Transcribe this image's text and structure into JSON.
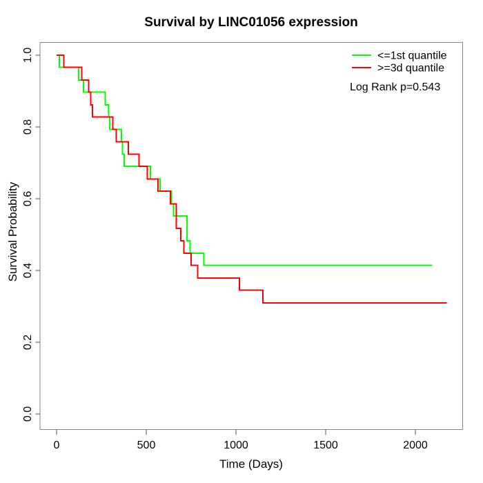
{
  "title": "Survival by LINC01056 expression",
  "legend": {
    "items": [
      {
        "label": "<=1st quantile",
        "color": "#00ff00"
      },
      {
        "label": ">=3d quantile",
        "color": "#ff0000"
      }
    ],
    "annotation": "Log Rank p=0.543"
  },
  "chart_data": {
    "type": "line",
    "subtype": "kaplan-meier-step",
    "title": "Survival by LINC01056 expression",
    "xlabel": "Time (Days)",
    "ylabel": "Survival Probability",
    "xlim": [
      0,
      2200
    ],
    "ylim": [
      0.0,
      1.0
    ],
    "grid": false,
    "legend_position": "top-right",
    "x_ticks": [
      0,
      500,
      1000,
      1500,
      2000
    ],
    "x_tick_labels": [
      "0",
      "500",
      "1000",
      "1500",
      "2000"
    ],
    "y_ticks": [
      0.0,
      0.2,
      0.4,
      0.6,
      0.8,
      1.0
    ],
    "y_tick_labels": [
      "0.0",
      "0.2",
      "0.4",
      "0.6",
      "0.8",
      "1.0"
    ],
    "annotation": "Log Rank p=0.543",
    "series": [
      {
        "name": "<=1st quantile",
        "color": "#00ff00",
        "end_time": 2095,
        "steps": [
          [
            0,
            1.0
          ],
          [
            15,
            0.966
          ],
          [
            124,
            0.931
          ],
          [
            150,
            0.897
          ],
          [
            272,
            0.862
          ],
          [
            291,
            0.828
          ],
          [
            296,
            0.793
          ],
          [
            362,
            0.759
          ],
          [
            367,
            0.724
          ],
          [
            376,
            0.69
          ],
          [
            524,
            0.655
          ],
          [
            576,
            0.621
          ],
          [
            641,
            0.586
          ],
          [
            652,
            0.552
          ],
          [
            727,
            0.483
          ],
          [
            744,
            0.448
          ],
          [
            822,
            0.414
          ]
        ]
      },
      {
        "name": ">=3d quantile",
        "color": "#ff0000",
        "end_time": 2175,
        "steps": [
          [
            0,
            1.0
          ],
          [
            40,
            0.966
          ],
          [
            140,
            0.931
          ],
          [
            178,
            0.897
          ],
          [
            191,
            0.862
          ],
          [
            200,
            0.828
          ],
          [
            313,
            0.793
          ],
          [
            332,
            0.759
          ],
          [
            400,
            0.724
          ],
          [
            460,
            0.69
          ],
          [
            505,
            0.655
          ],
          [
            565,
            0.621
          ],
          [
            635,
            0.586
          ],
          [
            667,
            0.517
          ],
          [
            692,
            0.483
          ],
          [
            710,
            0.448
          ],
          [
            750,
            0.414
          ],
          [
            787,
            0.379
          ],
          [
            1020,
            0.345
          ],
          [
            1150,
            0.31
          ]
        ]
      }
    ]
  }
}
